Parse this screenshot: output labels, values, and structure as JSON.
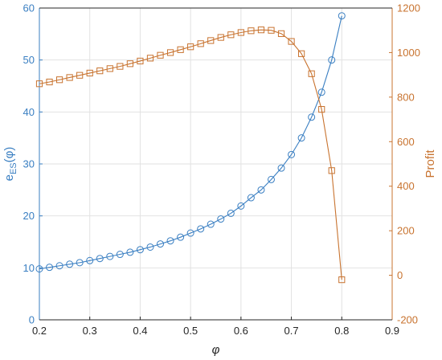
{
  "chart_data": {
    "type": "line",
    "xlabel": "φ",
    "ylabel_left_main": "e",
    "ylabel_left_sub": "ES",
    "ylabel_left_arg": "(φ)",
    "ylabel_right": "Profit",
    "xlim": [
      0.2,
      0.9
    ],
    "ylim_left": [
      0,
      60
    ],
    "ylim_right": [
      -200,
      1200
    ],
    "grid": true,
    "x_ticks": [
      "0.2",
      "0.3",
      "0.4",
      "0.5",
      "0.6",
      "0.7",
      "0.8",
      "0.9"
    ],
    "y_left_ticks": [
      "0",
      "10",
      "20",
      "30",
      "40",
      "50",
      "60"
    ],
    "y_right_ticks": [
      "-200",
      "0",
      "200",
      "400",
      "600",
      "800",
      "1000",
      "1200"
    ],
    "series": [
      {
        "axis": "left",
        "color": "#3a7fc2",
        "marker": "circle",
        "x": [
          0.2,
          0.22,
          0.24,
          0.26,
          0.28,
          0.3,
          0.32,
          0.34,
          0.36,
          0.38,
          0.4,
          0.42,
          0.44,
          0.46,
          0.48,
          0.5,
          0.52,
          0.54,
          0.56,
          0.58,
          0.6,
          0.62,
          0.64,
          0.66,
          0.68,
          0.7,
          0.72,
          0.74,
          0.76,
          0.78,
          0.8
        ],
        "values": [
          9.8,
          10.1,
          10.4,
          10.7,
          11.0,
          11.4,
          11.8,
          12.2,
          12.6,
          13.0,
          13.5,
          14.0,
          14.6,
          15.2,
          15.9,
          16.7,
          17.5,
          18.4,
          19.4,
          20.5,
          21.9,
          23.5,
          25.0,
          27.0,
          29.2,
          31.8,
          35.0,
          39.0,
          43.8,
          50.0,
          58.5
        ]
      },
      {
        "axis": "right",
        "color": "#c8732f",
        "marker": "square",
        "x": [
          0.2,
          0.22,
          0.24,
          0.26,
          0.28,
          0.3,
          0.32,
          0.34,
          0.36,
          0.38,
          0.4,
          0.42,
          0.44,
          0.46,
          0.48,
          0.5,
          0.52,
          0.54,
          0.56,
          0.58,
          0.6,
          0.62,
          0.64,
          0.66,
          0.68,
          0.7,
          0.72,
          0.74,
          0.76,
          0.78,
          0.8
        ],
        "values": [
          860,
          868,
          878,
          888,
          898,
          908,
          918,
          928,
          938,
          950,
          962,
          975,
          988,
          1000,
          1013,
          1026,
          1040,
          1054,
          1068,
          1080,
          1090,
          1098,
          1102,
          1100,
          1085,
          1050,
          995,
          905,
          745,
          470,
          -20
        ]
      }
    ]
  },
  "colors": {
    "left_axis": "#3a7fc2",
    "right_axis": "#c8732f",
    "grid": "#e2e2e2",
    "axis_line": "#262626"
  }
}
